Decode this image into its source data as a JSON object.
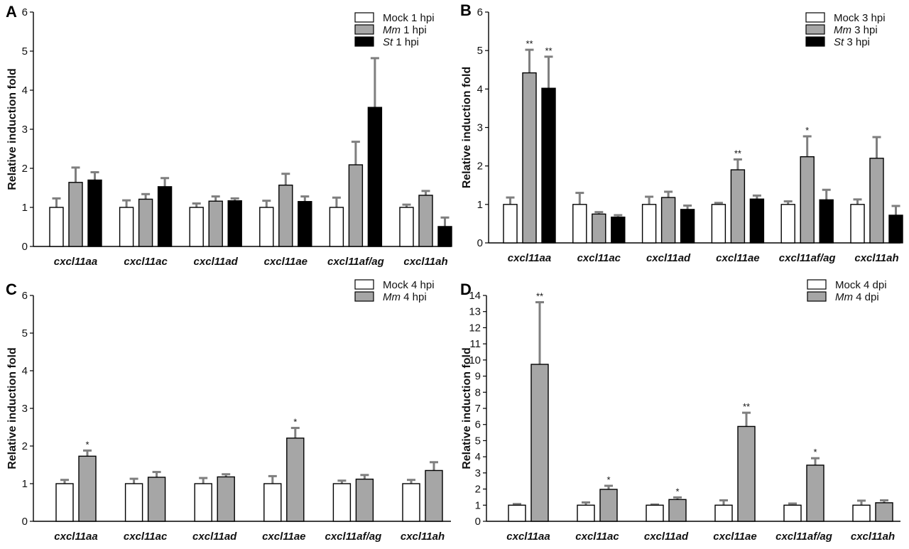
{
  "chart_data": [
    {
      "type": "bar",
      "panel_label": "A",
      "ylabel": "Relative induction fold",
      "ylim": [
        0,
        6
      ],
      "ytick_step": 1,
      "categories": [
        "cxcl11aa",
        "cxcl11ac",
        "cxcl11ad",
        "cxcl11ae",
        "cxcl11af/ag",
        "cxcl11ah"
      ],
      "series": [
        {
          "name": "Mock 1 hpi",
          "name_italic": "",
          "name_rest": "Mock 1 hpi",
          "color": "#ffffff",
          "values": [
            1.0,
            1.0,
            1.0,
            1.0,
            1.0,
            1.0
          ],
          "errors": [
            0.23,
            0.18,
            0.1,
            0.17,
            0.25,
            0.07
          ],
          "sig": [
            "",
            "",
            "",
            "",
            "",
            ""
          ]
        },
        {
          "name": "Mm 1 hpi",
          "name_italic": "Mm",
          "name_rest": " 1 hpi",
          "color": "#a6a6a6",
          "values": [
            1.64,
            1.21,
            1.16,
            1.57,
            2.09,
            1.31
          ],
          "errors": [
            0.38,
            0.13,
            0.12,
            0.29,
            0.59,
            0.11
          ],
          "sig": [
            "",
            "",
            "",
            "",
            "",
            ""
          ]
        },
        {
          "name": "St 1 hpi",
          "name_italic": "St",
          "name_rest": " 1 hpi",
          "color": "#000000",
          "values": [
            1.7,
            1.53,
            1.17,
            1.15,
            3.56,
            0.51
          ],
          "errors": [
            0.2,
            0.22,
            0.06,
            0.13,
            1.26,
            0.23
          ],
          "sig": [
            "",
            "",
            "",
            "",
            "",
            ""
          ]
        }
      ],
      "legend": "top-right"
    },
    {
      "type": "bar",
      "panel_label": "B",
      "ylabel": "Relative induction fold",
      "ylim": [
        0,
        6
      ],
      "ytick_step": 1,
      "categories": [
        "cxcl11aa",
        "cxcl11ac",
        "cxcl11ad",
        "cxcl11ae",
        "cxcl11af/ag",
        "cxcl11ah"
      ],
      "series": [
        {
          "name": "Mock 3 hpi",
          "name_italic": "",
          "name_rest": "Mock 3 hpi",
          "color": "#ffffff",
          "values": [
            1.0,
            1.0,
            1.0,
            1.0,
            1.0,
            1.0
          ],
          "errors": [
            0.18,
            0.3,
            0.2,
            0.04,
            0.08,
            0.13
          ],
          "sig": [
            "",
            "",
            "",
            "",
            "",
            ""
          ]
        },
        {
          "name": "Mm 3 hpi",
          "name_italic": "Mm",
          "name_rest": " 3 hpi",
          "color": "#a6a6a6",
          "values": [
            4.42,
            0.75,
            1.18,
            1.9,
            2.24,
            2.2
          ],
          "errors": [
            0.6,
            0.05,
            0.15,
            0.27,
            0.53,
            0.55
          ],
          "sig": [
            "**",
            "",
            "",
            "**",
            "*",
            ""
          ]
        },
        {
          "name": "St 3 hpi",
          "name_italic": "St",
          "name_rest": " 3 hpi",
          "color": "#000000",
          "values": [
            4.02,
            0.67,
            0.87,
            1.14,
            1.12,
            0.72
          ],
          "errors": [
            0.82,
            0.05,
            0.1,
            0.09,
            0.26,
            0.24
          ],
          "sig": [
            "**",
            "",
            "",
            "",
            "",
            ""
          ]
        }
      ],
      "legend": "top-right"
    },
    {
      "type": "bar",
      "panel_label": "C",
      "ylabel": "Relative induction fold",
      "ylim": [
        0,
        6
      ],
      "ytick_step": 1,
      "categories": [
        "cxcl11aa",
        "cxcl11ac",
        "cxcl11ad",
        "cxcl11ae",
        "cxcl11af/ag",
        "cxcl11ah"
      ],
      "series": [
        {
          "name": "Mock 4 hpi",
          "name_italic": "",
          "name_rest": "Mock 4 hpi",
          "color": "#ffffff",
          "values": [
            1.0,
            1.0,
            1.0,
            1.0,
            1.0,
            1.0
          ],
          "errors": [
            0.1,
            0.13,
            0.15,
            0.2,
            0.08,
            0.1
          ],
          "sig": [
            "",
            "",
            "",
            "",
            "",
            ""
          ]
        },
        {
          "name": "Mm 4 hpi",
          "name_italic": "Mm",
          "name_rest": " 4 hpi",
          "color": "#a6a6a6",
          "values": [
            1.73,
            1.17,
            1.18,
            2.21,
            1.12,
            1.35
          ],
          "errors": [
            0.15,
            0.14,
            0.07,
            0.27,
            0.11,
            0.22
          ],
          "sig": [
            "*",
            "",
            "",
            "*",
            "",
            ""
          ]
        }
      ],
      "legend": "top-right"
    },
    {
      "type": "bar",
      "panel_label": "D",
      "ylabel": "Relative induction fold",
      "ylim": [
        0,
        14
      ],
      "ytick_step": 1,
      "categories": [
        "cxcl11aa",
        "cxcl11ac",
        "cxcl11ad",
        "cxcl11ae",
        "cxcl11af/ag",
        "cxcl11ah"
      ],
      "series": [
        {
          "name": "Mock 4 dpi",
          "name_italic": "",
          "name_rest": "Mock 4 dpi",
          "color": "#ffffff",
          "values": [
            1.0,
            1.0,
            1.0,
            1.0,
            1.0,
            1.0
          ],
          "errors": [
            0.07,
            0.17,
            0.04,
            0.3,
            0.1,
            0.28
          ],
          "sig": [
            "",
            "",
            "",
            "",
            "",
            ""
          ]
        },
        {
          "name": "Mm 4 dpi",
          "name_italic": "Mm",
          "name_rest": " 4 dpi",
          "color": "#a6a6a6",
          "values": [
            9.73,
            1.98,
            1.35,
            5.88,
            3.48,
            1.15
          ],
          "errors": [
            3.85,
            0.22,
            0.13,
            0.85,
            0.43,
            0.15
          ],
          "sig": [
            "**",
            "*",
            "*",
            "**",
            "*",
            ""
          ]
        }
      ],
      "legend": "top-right"
    }
  ]
}
